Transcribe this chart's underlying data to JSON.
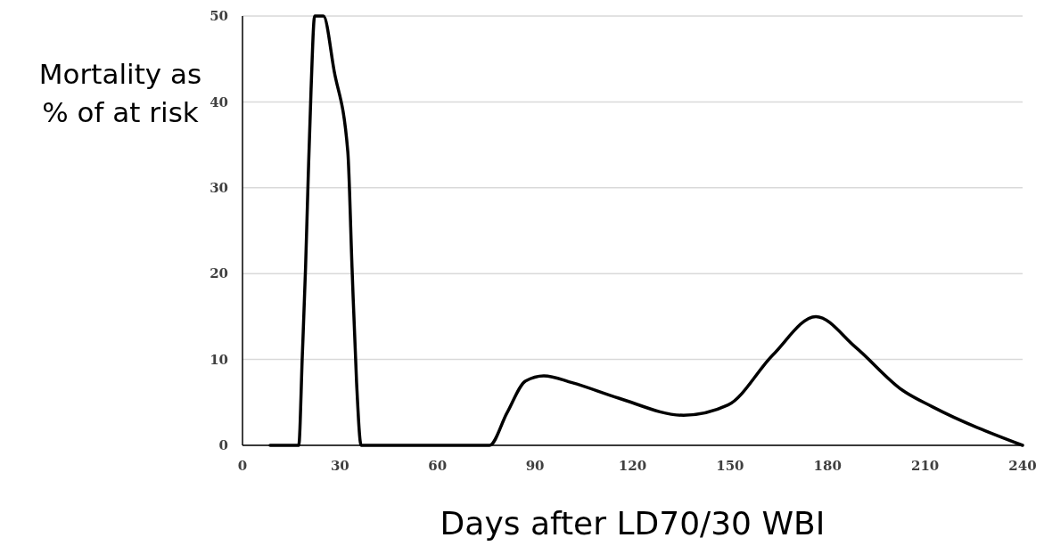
{
  "chart_data": {
    "type": "line",
    "xlabel": "Days after LD70/30 WBI",
    "ylabel": "Mortality as % of at risk",
    "xlim": [
      0,
      240
    ],
    "xticks": [
      0,
      30,
      60,
      90,
      120,
      150,
      180,
      210,
      240
    ],
    "ylim": [
      0,
      50
    ],
    "yticks": [
      0,
      10,
      20,
      30,
      40,
      50
    ],
    "grid": "y",
    "series": [
      {
        "color": "#000000",
        "x": [
          8.5,
          17.3,
          18.4,
          19.4,
          20.2,
          21.1,
          22.2,
          24.9,
          28.2,
          32.4,
          33.7,
          35.1,
          36.5,
          76,
          81.4,
          87.1,
          92.7,
          101.4,
          115.7,
          135.7,
          149.4,
          163.1,
          176.4,
          188.7,
          203.1,
          212.2,
          240
        ],
        "values": [
          0,
          0,
          10.4,
          20.7,
          31,
          41.5,
          50,
          50,
          43.6,
          34.2,
          20.7,
          7.3,
          0,
          0,
          3.8,
          7.5,
          8.1,
          7.3,
          5.5,
          3.5,
          4.7,
          10.5,
          15,
          11.4,
          6.4,
          4.5,
          0
        ]
      }
    ]
  }
}
